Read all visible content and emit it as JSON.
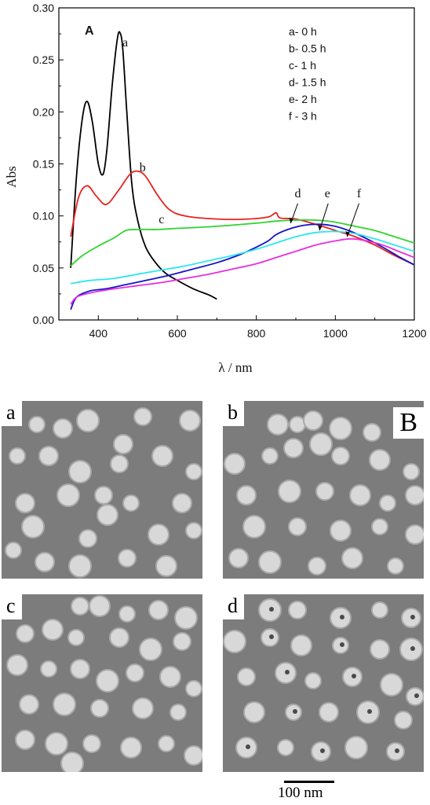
{
  "chart_data": {
    "type": "line",
    "panel_label": "A",
    "xlabel": "λ / nm",
    "ylabel": "Abs",
    "xlim": [
      300,
      1200
    ],
    "ylim": [
      0.0,
      0.3
    ],
    "xticks": [
      "400",
      "600",
      "800",
      "1000",
      "1200"
    ],
    "yticks": [
      "0.00",
      "0.05",
      "0.10",
      "0.15",
      "0.20",
      "0.25",
      "0.30"
    ],
    "legend_position": "top-right",
    "legend": [
      "a- 0 h",
      "b- 0.5 h",
      "c- 1 h",
      "d- 1.5 h",
      "e- 2 h",
      "f - 3 h"
    ],
    "series": [
      {
        "label": "a",
        "color": "#000000",
        "x": [
          330,
          345,
          360,
          372,
          385,
          400,
          412,
          422,
          435,
          448,
          455,
          462,
          472,
          485,
          500,
          520,
          545,
          570,
          600,
          640,
          680,
          700
        ],
        "y": [
          0.05,
          0.14,
          0.195,
          0.21,
          0.19,
          0.15,
          0.14,
          0.165,
          0.225,
          0.27,
          0.276,
          0.26,
          0.2,
          0.13,
          0.095,
          0.07,
          0.055,
          0.045,
          0.038,
          0.03,
          0.024,
          0.02
        ]
      },
      {
        "label": "b",
        "color": "#e8231c",
        "x": [
          330,
          350,
          372,
          395,
          420,
          450,
          480,
          500,
          520,
          550,
          580,
          620,
          700,
          780,
          830,
          850,
          860,
          900,
          950,
          1000,
          1050,
          1100,
          1150,
          1200
        ],
        "y": [
          0.08,
          0.118,
          0.129,
          0.119,
          0.111,
          0.124,
          0.14,
          0.143,
          0.138,
          0.12,
          0.106,
          0.1,
          0.097,
          0.097,
          0.099,
          0.103,
          0.098,
          0.097,
          0.092,
          0.086,
          0.08,
          0.072,
          0.062,
          0.053
        ]
      },
      {
        "label": "c",
        "color": "#2ed42e",
        "x": [
          330,
          360,
          400,
          440,
          470,
          500,
          550,
          600,
          700,
          800,
          850,
          900,
          950,
          1000,
          1050,
          1100,
          1150,
          1200
        ],
        "y": [
          0.052,
          0.062,
          0.071,
          0.079,
          0.086,
          0.087,
          0.087,
          0.088,
          0.09,
          0.093,
          0.095,
          0.096,
          0.096,
          0.094,
          0.09,
          0.086,
          0.08,
          0.074
        ]
      },
      {
        "label": "d",
        "color": "#1414c8",
        "x": [
          330,
          345,
          380,
          420,
          470,
          520,
          580,
          640,
          700,
          760,
          800,
          830,
          850,
          880,
          920,
          960,
          1000,
          1040,
          1080,
          1120,
          1160,
          1200
        ],
        "y": [
          0.01,
          0.022,
          0.028,
          0.03,
          0.034,
          0.038,
          0.043,
          0.049,
          0.055,
          0.063,
          0.07,
          0.076,
          0.082,
          0.087,
          0.091,
          0.092,
          0.09,
          0.085,
          0.078,
          0.07,
          0.061,
          0.053
        ]
      },
      {
        "label": "e",
        "color": "#2ee6f0",
        "x": [
          330,
          380,
          440,
          500,
          560,
          620,
          680,
          740,
          800,
          850,
          900,
          950,
          1000,
          1050,
          1100,
          1150,
          1200
        ],
        "y": [
          0.035,
          0.038,
          0.04,
          0.044,
          0.048,
          0.052,
          0.057,
          0.062,
          0.068,
          0.074,
          0.08,
          0.084,
          0.085,
          0.083,
          0.078,
          0.072,
          0.066
        ]
      },
      {
        "label": "f",
        "color": "#e62ee0",
        "x": [
          330,
          345,
          380,
          440,
          500,
          560,
          620,
          680,
          740,
          800,
          850,
          900,
          950,
          1000,
          1040,
          1080,
          1120,
          1160,
          1200
        ],
        "y": [
          0.015,
          0.022,
          0.026,
          0.03,
          0.033,
          0.036,
          0.04,
          0.044,
          0.049,
          0.054,
          0.06,
          0.066,
          0.072,
          0.076,
          0.078,
          0.076,
          0.072,
          0.066,
          0.06
        ]
      }
    ],
    "annotations": [
      {
        "text": "a",
        "x": 468,
        "y": 0.263
      },
      {
        "text": "b",
        "x": 512,
        "y": 0.143
      },
      {
        "text": "c",
        "x": 560,
        "y": 0.093
      },
      {
        "text": "d",
        "x": 905,
        "y": 0.118
      },
      {
        "text": "e",
        "x": 980,
        "y": 0.118
      },
      {
        "text": "f",
        "x": 1060,
        "y": 0.118
      }
    ]
  },
  "micrographs": {
    "group_label": "B",
    "panels": [
      {
        "label": "a"
      },
      {
        "label": "b"
      },
      {
        "label": "c"
      },
      {
        "label": "d"
      }
    ],
    "scale_bar": "100 nm"
  }
}
